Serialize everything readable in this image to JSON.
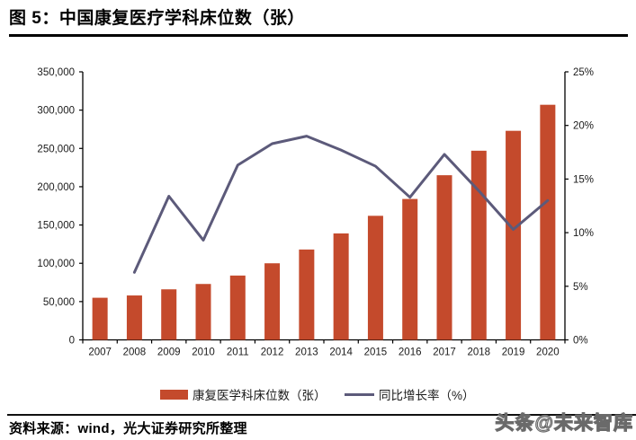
{
  "header": {
    "title": "图 5：中国康复医疗学科床位数（张）"
  },
  "chart_data": {
    "type": "bar",
    "title": "图 5：中国康复医疗学科床位数（张）",
    "categories": [
      "2007",
      "2008",
      "2009",
      "2010",
      "2011",
      "2012",
      "2013",
      "2014",
      "2015",
      "2016",
      "2017",
      "2018",
      "2019",
      "2020"
    ],
    "series": [
      {
        "name": "康复医学科床位数（张）",
        "type": "bar",
        "yaxis": "left",
        "color": "#C44A2C",
        "values": [
          55000,
          58000,
          66000,
          73000,
          84000,
          100000,
          118000,
          139000,
          162000,
          184000,
          215000,
          247000,
          273000,
          307000
        ]
      },
      {
        "name": "同比增长率（%）",
        "type": "line",
        "yaxis": "right",
        "color": "#5C5A7A",
        "values": [
          null,
          6.3,
          13.4,
          9.3,
          16.3,
          18.3,
          19.0,
          17.7,
          16.2,
          13.3,
          17.3,
          13.9,
          10.3,
          13.0
        ]
      }
    ],
    "left_axis": {
      "min": 0,
      "max": 350000,
      "step": 50000,
      "labels": [
        "0",
        "50,000",
        "100,000",
        "150,000",
        "200,000",
        "250,000",
        "300,000",
        "350,000"
      ]
    },
    "right_axis": {
      "min": 0,
      "max": 25,
      "step": 5,
      "labels": [
        "0%",
        "5%",
        "10%",
        "15%",
        "20%",
        "25%"
      ]
    },
    "grid": false,
    "legend_position": "bottom"
  },
  "footer": {
    "source": "资料来源：wind，光大证券研究所整理",
    "watermark": "头条@未来智库"
  },
  "colors": {
    "axis": "#000000",
    "text": "#1a1a1a"
  }
}
